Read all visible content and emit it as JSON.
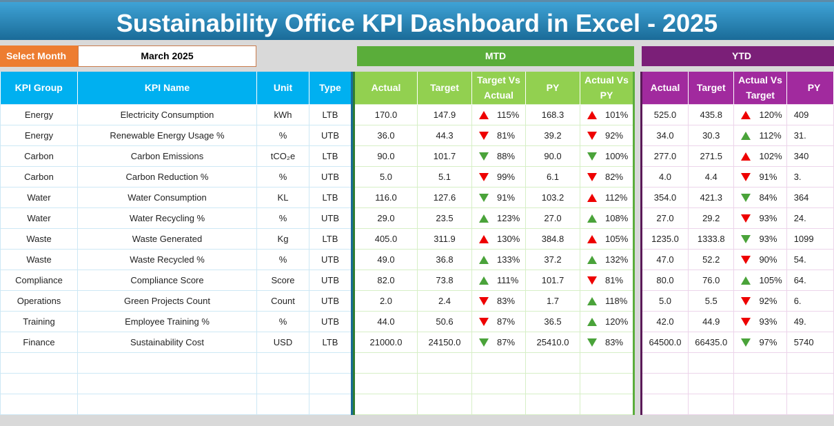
{
  "title": "Sustainability Office KPI Dashboard in Excel - 2025",
  "select_month": {
    "label": "Select Month",
    "value": "March 2025"
  },
  "sections": {
    "mtd": "MTD",
    "ytd": "YTD"
  },
  "colors": {
    "up_bad": "#e00000",
    "good": "#4aa33a",
    "mtd": "#5aad3a",
    "ytd": "#7b1f78",
    "kpi_header": "#00b0f0"
  },
  "headers": {
    "kpi": [
      "KPI Group",
      "KPI Name",
      "Unit",
      "Type"
    ],
    "mtd": [
      "Actual",
      "Target",
      "Target Vs Actual",
      "PY",
      "Actual Vs PY"
    ],
    "ytd": [
      "Actual",
      "Target",
      "Actual Vs Target",
      "PY"
    ]
  },
  "rows": [
    {
      "group": "Energy",
      "name": "Electricity Consumption",
      "unit": "kWh",
      "type": "LTB",
      "mtd": {
        "actual": "170.0",
        "target": "147.9",
        "tva": "115%",
        "tva_dir": "up",
        "tva_color": "red",
        "py": "168.3",
        "avpy": "101%",
        "avpy_dir": "up",
        "avpy_color": "red"
      },
      "ytd": {
        "actual": "525.0",
        "target": "435.8",
        "avt": "120%",
        "avt_dir": "up",
        "avt_color": "red",
        "py": "409"
      }
    },
    {
      "group": "Energy",
      "name": "Renewable Energy Usage %",
      "unit": "%",
      "type": "UTB",
      "mtd": {
        "actual": "36.0",
        "target": "44.3",
        "tva": "81%",
        "tva_dir": "down",
        "tva_color": "red",
        "py": "39.2",
        "avpy": "92%",
        "avpy_dir": "down",
        "avpy_color": "red"
      },
      "ytd": {
        "actual": "34.0",
        "target": "30.3",
        "avt": "112%",
        "avt_dir": "up",
        "avt_color": "green",
        "py": "31."
      }
    },
    {
      "group": "Carbon",
      "name": "Carbon Emissions",
      "unit": "tCO₂e",
      "type": "LTB",
      "mtd": {
        "actual": "90.0",
        "target": "101.7",
        "tva": "88%",
        "tva_dir": "down",
        "tva_color": "green",
        "py": "90.0",
        "avpy": "100%",
        "avpy_dir": "down",
        "avpy_color": "green"
      },
      "ytd": {
        "actual": "277.0",
        "target": "271.5",
        "avt": "102%",
        "avt_dir": "up",
        "avt_color": "red",
        "py": "340"
      }
    },
    {
      "group": "Carbon",
      "name": "Carbon Reduction %",
      "unit": "%",
      "type": "UTB",
      "mtd": {
        "actual": "5.0",
        "target": "5.1",
        "tva": "99%",
        "tva_dir": "down",
        "tva_color": "red",
        "py": "6.1",
        "avpy": "82%",
        "avpy_dir": "down",
        "avpy_color": "red"
      },
      "ytd": {
        "actual": "4.0",
        "target": "4.4",
        "avt": "91%",
        "avt_dir": "down",
        "avt_color": "red",
        "py": "3."
      }
    },
    {
      "group": "Water",
      "name": "Water Consumption",
      "unit": "KL",
      "type": "LTB",
      "mtd": {
        "actual": "116.0",
        "target": "127.6",
        "tva": "91%",
        "tva_dir": "down",
        "tva_color": "green",
        "py": "103.2",
        "avpy": "112%",
        "avpy_dir": "up",
        "avpy_color": "red"
      },
      "ytd": {
        "actual": "354.0",
        "target": "421.3",
        "avt": "84%",
        "avt_dir": "down",
        "avt_color": "green",
        "py": "364"
      }
    },
    {
      "group": "Water",
      "name": "Water Recycling %",
      "unit": "%",
      "type": "UTB",
      "mtd": {
        "actual": "29.0",
        "target": "23.5",
        "tva": "123%",
        "tva_dir": "up",
        "tva_color": "green",
        "py": "27.0",
        "avpy": "108%",
        "avpy_dir": "up",
        "avpy_color": "green"
      },
      "ytd": {
        "actual": "27.0",
        "target": "29.2",
        "avt": "93%",
        "avt_dir": "down",
        "avt_color": "red",
        "py": "24."
      }
    },
    {
      "group": "Waste",
      "name": "Waste Generated",
      "unit": "Kg",
      "type": "LTB",
      "mtd": {
        "actual": "405.0",
        "target": "311.9",
        "tva": "130%",
        "tva_dir": "up",
        "tva_color": "red",
        "py": "384.8",
        "avpy": "105%",
        "avpy_dir": "up",
        "avpy_color": "red"
      },
      "ytd": {
        "actual": "1235.0",
        "target": "1333.8",
        "avt": "93%",
        "avt_dir": "down",
        "avt_color": "green",
        "py": "1099"
      }
    },
    {
      "group": "Waste",
      "name": "Waste Recycled %",
      "unit": "%",
      "type": "UTB",
      "mtd": {
        "actual": "49.0",
        "target": "36.8",
        "tva": "133%",
        "tva_dir": "up",
        "tva_color": "green",
        "py": "37.2",
        "avpy": "132%",
        "avpy_dir": "up",
        "avpy_color": "green"
      },
      "ytd": {
        "actual": "47.0",
        "target": "52.2",
        "avt": "90%",
        "avt_dir": "down",
        "avt_color": "red",
        "py": "54."
      }
    },
    {
      "group": "Compliance",
      "name": "Compliance Score",
      "unit": "Score",
      "type": "UTB",
      "mtd": {
        "actual": "82.0",
        "target": "73.8",
        "tva": "111%",
        "tva_dir": "up",
        "tva_color": "green",
        "py": "101.7",
        "avpy": "81%",
        "avpy_dir": "down",
        "avpy_color": "red"
      },
      "ytd": {
        "actual": "80.0",
        "target": "76.0",
        "avt": "105%",
        "avt_dir": "up",
        "avt_color": "green",
        "py": "64."
      }
    },
    {
      "group": "Operations",
      "name": "Green Projects Count",
      "unit": "Count",
      "type": "UTB",
      "mtd": {
        "actual": "2.0",
        "target": "2.4",
        "tva": "83%",
        "tva_dir": "down",
        "tva_color": "red",
        "py": "1.7",
        "avpy": "118%",
        "avpy_dir": "up",
        "avpy_color": "green"
      },
      "ytd": {
        "actual": "5.0",
        "target": "5.5",
        "avt": "92%",
        "avt_dir": "down",
        "avt_color": "red",
        "py": "6."
      }
    },
    {
      "group": "Training",
      "name": "Employee Training %",
      "unit": "%",
      "type": "UTB",
      "mtd": {
        "actual": "44.0",
        "target": "50.6",
        "tva": "87%",
        "tva_dir": "down",
        "tva_color": "red",
        "py": "36.5",
        "avpy": "120%",
        "avpy_dir": "up",
        "avpy_color": "green"
      },
      "ytd": {
        "actual": "42.0",
        "target": "44.9",
        "avt": "93%",
        "avt_dir": "down",
        "avt_color": "red",
        "py": "49."
      }
    },
    {
      "group": "Finance",
      "name": "Sustainability Cost",
      "unit": "USD",
      "type": "LTB",
      "mtd": {
        "actual": "21000.0",
        "target": "24150.0",
        "tva": "87%",
        "tva_dir": "down",
        "tva_color": "green",
        "py": "25410.0",
        "avpy": "83%",
        "avpy_dir": "down",
        "avpy_color": "green"
      },
      "ytd": {
        "actual": "64500.0",
        "target": "66435.0",
        "avt": "97%",
        "avt_dir": "down",
        "avt_color": "green",
        "py": "5740"
      }
    }
  ]
}
